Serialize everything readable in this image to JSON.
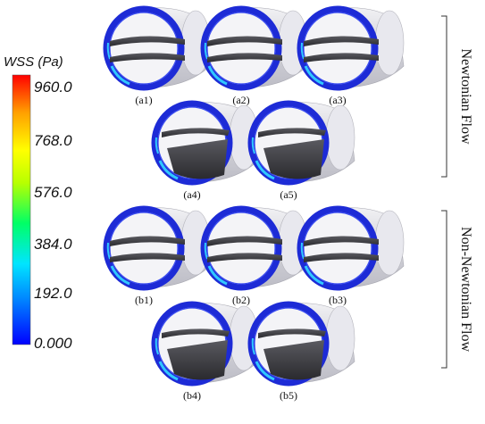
{
  "legend": {
    "title": "WSS (Pa)",
    "ticks": [
      "960.0",
      "768.0",
      "576.0",
      "384.0",
      "192.0",
      "0.000"
    ],
    "colors": [
      "#0000ff",
      "#007fff",
      "#00e5ff",
      "#00ff66",
      "#b8ff00",
      "#ffff00",
      "#ffa000",
      "#ff0000"
    ]
  },
  "groups": {
    "newtonian": "Newtonian Flow",
    "non_newtonian": "Non-Newtonian Flow"
  },
  "panels": [
    {
      "label": "(a1)",
      "state": "open"
    },
    {
      "label": "(a2)",
      "state": "open"
    },
    {
      "label": "(a3)",
      "state": "open"
    },
    {
      "label": "(a4)",
      "state": "closing"
    },
    {
      "label": "(a5)",
      "state": "closing"
    },
    {
      "label": "(b1)",
      "state": "open"
    },
    {
      "label": "(b2)",
      "state": "open"
    },
    {
      "label": "(b3)",
      "state": "open"
    },
    {
      "label": "(b4)",
      "state": "closing"
    },
    {
      "label": "(b5)",
      "state": "closing"
    }
  ],
  "colors": {
    "tube": "#d6d6dc",
    "ring": "#1d2bd6",
    "leaflet": "#3c3c40",
    "highlight": "#30c8ff"
  }
}
